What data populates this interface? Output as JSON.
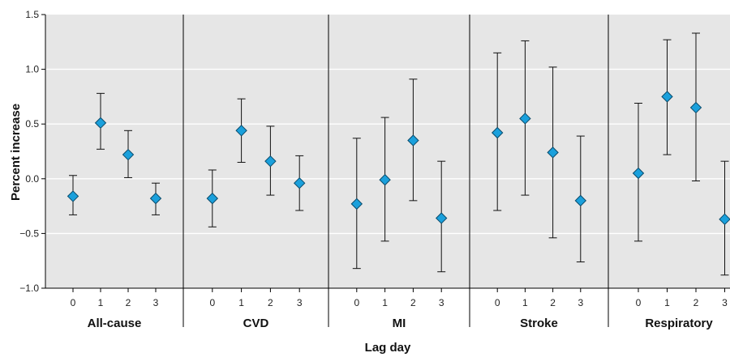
{
  "chart_data": {
    "type": "scatter",
    "xlabel": "Lag day",
    "ylabel": "Percent increase",
    "ylim": [
      -1.0,
      1.5
    ],
    "yticks": [
      -1.0,
      -0.5,
      0.0,
      0.5,
      1.0,
      1.5
    ],
    "ytick_labels": [
      "−1.0",
      "−0.5",
      "0.0",
      "0.5",
      "1.0",
      "1.5"
    ],
    "categories": [
      "0",
      "1",
      "2",
      "3"
    ],
    "grid": "horizontal",
    "colors": {
      "panel_bg": "#e6e6e6",
      "marker": "#1aa0dc",
      "marker_edge": "#0a4a6a",
      "grid": "#ffffff",
      "divider": "#000000"
    },
    "panels": [
      {
        "name": "All-cause",
        "points": [
          {
            "lag": "0",
            "estimate": -0.16,
            "lower": -0.33,
            "upper": 0.03
          },
          {
            "lag": "1",
            "estimate": 0.51,
            "lower": 0.27,
            "upper": 0.78
          },
          {
            "lag": "2",
            "estimate": 0.22,
            "lower": 0.01,
            "upper": 0.44
          },
          {
            "lag": "3",
            "estimate": -0.18,
            "lower": -0.33,
            "upper": -0.04
          }
        ]
      },
      {
        "name": "CVD",
        "points": [
          {
            "lag": "0",
            "estimate": -0.18,
            "lower": -0.44,
            "upper": 0.08
          },
          {
            "lag": "1",
            "estimate": 0.44,
            "lower": 0.15,
            "upper": 0.73
          },
          {
            "lag": "2",
            "estimate": 0.16,
            "lower": -0.15,
            "upper": 0.48
          },
          {
            "lag": "3",
            "estimate": -0.04,
            "lower": -0.29,
            "upper": 0.21
          }
        ]
      },
      {
        "name": "MI",
        "points": [
          {
            "lag": "0",
            "estimate": -0.23,
            "lower": -0.82,
            "upper": 0.37
          },
          {
            "lag": "1",
            "estimate": -0.01,
            "lower": -0.57,
            "upper": 0.56
          },
          {
            "lag": "2",
            "estimate": 0.35,
            "lower": -0.2,
            "upper": 0.91
          },
          {
            "lag": "3",
            "estimate": -0.36,
            "lower": -0.85,
            "upper": 0.16
          }
        ]
      },
      {
        "name": "Stroke",
        "points": [
          {
            "lag": "0",
            "estimate": 0.42,
            "lower": -0.29,
            "upper": 1.15
          },
          {
            "lag": "1",
            "estimate": 0.55,
            "lower": -0.15,
            "upper": 1.26
          },
          {
            "lag": "2",
            "estimate": 0.24,
            "lower": -0.54,
            "upper": 1.02
          },
          {
            "lag": "3",
            "estimate": -0.2,
            "lower": -0.76,
            "upper": 0.39
          }
        ]
      },
      {
        "name": "Respiratory",
        "points": [
          {
            "lag": "0",
            "estimate": 0.05,
            "lower": -0.57,
            "upper": 0.69
          },
          {
            "lag": "1",
            "estimate": 0.75,
            "lower": 0.22,
            "upper": 1.27
          },
          {
            "lag": "2",
            "estimate": 0.65,
            "lower": -0.02,
            "upper": 1.33
          },
          {
            "lag": "3",
            "estimate": -0.37,
            "lower": -0.88,
            "upper": 0.16
          }
        ]
      }
    ]
  }
}
